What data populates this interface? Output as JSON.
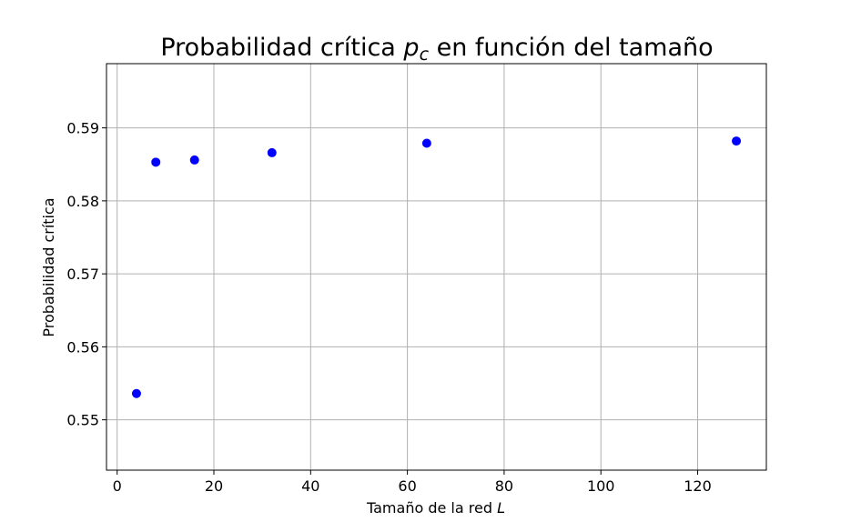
{
  "chart_data": {
    "type": "scatter",
    "title": {
      "prefix": "Probabilidad crítica ",
      "math_main": "p",
      "math_sub": "c",
      "suffix": " en función del tamaño"
    },
    "xlabel": {
      "text": "Tamaño de la red ",
      "math": "L"
    },
    "ylabel": "Probabilidad crítica",
    "x": [
      4,
      8,
      16,
      32,
      64,
      128
    ],
    "y": [
      0.5536,
      0.5853,
      0.5856,
      0.5866,
      0.5879,
      0.5882
    ],
    "xlim": [
      -2.2,
      134.2
    ],
    "ylim": [
      0.5431,
      0.5988
    ],
    "xticks": [
      0,
      20,
      40,
      60,
      80,
      100,
      120
    ],
    "yticks": [
      0.55,
      0.56,
      0.57,
      0.58,
      0.59
    ],
    "ytick_labels": [
      "0.55",
      "0.56",
      "0.57",
      "0.58",
      "0.59"
    ],
    "grid": true,
    "marker_color": "#0000ff"
  }
}
